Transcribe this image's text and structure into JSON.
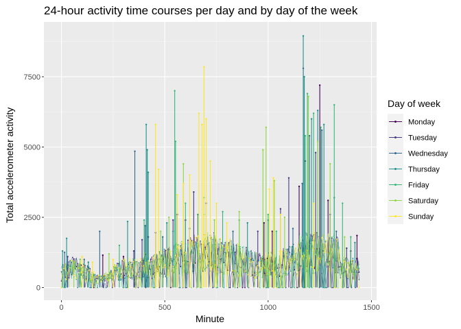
{
  "chart_data": {
    "type": "line",
    "title": "24-hour activity time courses per day and by day of the week",
    "xlabel": "Minute",
    "ylabel": "Total accelerometer activity",
    "xlim": [
      -85,
      1525
    ],
    "ylim": [
      -450,
      9450
    ],
    "x_ticks": [
      0,
      500,
      1000,
      1500
    ],
    "x_tick_labels": [
      "0",
      "500",
      "1000",
      "1500"
    ],
    "y_ticks": [
      0,
      2500,
      5000,
      7500
    ],
    "y_tick_labels": [
      "0",
      "2500",
      "5000",
      "7500"
    ],
    "grid": true,
    "legend": {
      "title": "Day of week",
      "position": "right"
    },
    "series": [
      {
        "name": "Monday",
        "color": "#440154",
        "spikes": [
          [
            200,
            1150
          ],
          [
            300,
            1100
          ],
          [
            420,
            1800
          ],
          [
            560,
            2600
          ],
          [
            600,
            2400
          ],
          [
            980,
            2300
          ],
          [
            1020,
            2000
          ],
          [
            1150,
            3600
          ],
          [
            1180,
            4500
          ],
          [
            1250,
            7200
          ],
          [
            1290,
            3100
          ],
          [
            1400,
            1300
          ],
          [
            1430,
            1850
          ]
        ]
      },
      {
        "name": "Tuesday",
        "color": "#443983",
        "spikes": [
          [
            30,
            1100
          ],
          [
            350,
            1300
          ],
          [
            390,
            1700
          ],
          [
            455,
            1950
          ],
          [
            540,
            2400
          ],
          [
            640,
            3400
          ],
          [
            700,
            3000
          ],
          [
            950,
            2000
          ],
          [
            1060,
            2800
          ],
          [
            1100,
            3900
          ],
          [
            1170,
            7800
          ],
          [
            1230,
            4800
          ],
          [
            1300,
            2600
          ],
          [
            1380,
            1400
          ]
        ]
      },
      {
        "name": "Wednesday",
        "color": "#31688e",
        "spikes": [
          [
            15,
            1250
          ],
          [
            110,
            1000
          ],
          [
            185,
            2000
          ],
          [
            355,
            4850
          ],
          [
            405,
            2200
          ],
          [
            490,
            1800
          ],
          [
            620,
            2100
          ],
          [
            830,
            2000
          ],
          [
            1000,
            2400
          ],
          [
            1120,
            2100
          ],
          [
            1165,
            3700
          ],
          [
            1200,
            5400
          ],
          [
            1260,
            5600
          ],
          [
            1330,
            2000
          ]
        ]
      },
      {
        "name": "Thursday",
        "color": "#21918c",
        "spikes": [
          [
            5,
            1300
          ],
          [
            25,
            1750
          ],
          [
            130,
            900
          ],
          [
            320,
            2350
          ],
          [
            410,
            5800
          ],
          [
            415,
            4900
          ],
          [
            420,
            4100
          ],
          [
            510,
            2300
          ],
          [
            540,
            2000
          ],
          [
            660,
            2600
          ],
          [
            900,
            2300
          ],
          [
            1170,
            8950
          ],
          [
            1175,
            7500
          ],
          [
            1210,
            6000
          ],
          [
            1240,
            6300
          ],
          [
            1270,
            5800
          ],
          [
            1320,
            3200
          ],
          [
            1420,
            1600
          ]
        ]
      },
      {
        "name": "Friday",
        "color": "#35b779",
        "spikes": [
          [
            90,
            1000
          ],
          [
            280,
            1500
          ],
          [
            400,
            2400
          ],
          [
            548,
            7000
          ],
          [
            552,
            5200
          ],
          [
            600,
            3000
          ],
          [
            690,
            3200
          ],
          [
            780,
            2700
          ],
          [
            860,
            2400
          ],
          [
            1000,
            2600
          ],
          [
            1040,
            2000
          ],
          [
            1180,
            5400
          ],
          [
            1190,
            6900
          ],
          [
            1220,
            6200
          ],
          [
            1255,
            5700
          ],
          [
            1320,
            6500
          ],
          [
            1360,
            3000
          ],
          [
            1400,
            1800
          ]
        ]
      },
      {
        "name": "Saturday",
        "color": "#8fd744",
        "spikes": [
          [
            60,
            900
          ],
          [
            230,
            1200
          ],
          [
            480,
            2000
          ],
          [
            520,
            2500
          ],
          [
            590,
            4400
          ],
          [
            690,
            2600
          ],
          [
            740,
            2400
          ],
          [
            860,
            2700
          ],
          [
            975,
            4900
          ],
          [
            990,
            5700
          ],
          [
            1030,
            3800
          ],
          [
            1080,
            2500
          ],
          [
            1195,
            6800
          ],
          [
            1240,
            5200
          ],
          [
            1300,
            4400
          ],
          [
            1370,
            1800
          ]
        ]
      },
      {
        "name": "Sunday",
        "color": "#fde725",
        "spikes": [
          [
            100,
            1100
          ],
          [
            150,
            900
          ],
          [
            250,
            1000
          ],
          [
            455,
            5800
          ],
          [
            470,
            4200
          ],
          [
            560,
            3300
          ],
          [
            590,
            3700
          ],
          [
            620,
            4000
          ],
          [
            665,
            6200
          ],
          [
            680,
            5800
          ],
          [
            690,
            7850
          ],
          [
            700,
            6000
          ],
          [
            720,
            4500
          ],
          [
            750,
            3000
          ],
          [
            800,
            2300
          ],
          [
            1005,
            3500
          ],
          [
            1025,
            3900
          ],
          [
            1060,
            2600
          ],
          [
            1220,
            3000
          ]
        ]
      }
    ]
  }
}
